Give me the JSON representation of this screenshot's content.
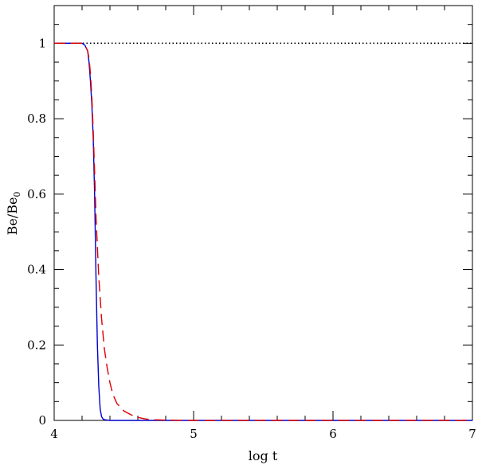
{
  "chart_data": {
    "type": "line",
    "xlabel": "log t",
    "ylabel": {
      "main": "Be/Be",
      "subscript": "0"
    },
    "xlim": [
      4,
      7
    ],
    "ylim": [
      0,
      1.1
    ],
    "x_ticks": [
      4,
      5,
      6,
      7
    ],
    "x_tick_labels": [
      "4",
      "5",
      "6",
      "7"
    ],
    "y_ticks": [
      0,
      0.2,
      0.4,
      0.6,
      0.8,
      1
    ],
    "y_tick_labels": [
      "0",
      "0.2",
      "0.4",
      "0.6",
      "0.8",
      "1"
    ],
    "grid": false,
    "series": [
      {
        "style": "dotted",
        "color": "#000000",
        "x": [
          4,
          7
        ],
        "y": [
          1,
          1
        ]
      },
      {
        "style": "solid",
        "color": "#0000cc",
        "x": [
          4.0,
          4.2,
          4.22,
          4.24,
          4.25,
          4.26,
          4.27,
          4.28,
          4.29,
          4.3,
          4.31,
          4.32,
          4.33,
          4.34,
          4.35,
          4.36,
          4.38,
          4.4,
          4.5,
          5.0,
          6.0,
          7.0
        ],
        "y": [
          1.0,
          1.0,
          0.995,
          0.98,
          0.95,
          0.9,
          0.84,
          0.75,
          0.6,
          0.38,
          0.2,
          0.09,
          0.03,
          0.01,
          0.004,
          0.002,
          0.001,
          0.0,
          0.0,
          0.0,
          0.0,
          0.0
        ]
      },
      {
        "style": "dashed",
        "color": "#dd0000",
        "x": [
          4.0,
          4.2,
          4.22,
          4.24,
          4.25,
          4.26,
          4.27,
          4.28,
          4.29,
          4.3,
          4.32,
          4.34,
          4.36,
          4.38,
          4.4,
          4.42,
          4.45,
          4.5,
          4.55,
          4.6,
          4.65,
          4.7,
          4.8,
          5.0,
          6.0,
          7.0
        ],
        "y": [
          1.0,
          1.0,
          0.995,
          0.98,
          0.96,
          0.92,
          0.86,
          0.77,
          0.66,
          0.54,
          0.38,
          0.27,
          0.19,
          0.14,
          0.1,
          0.07,
          0.045,
          0.025,
          0.015,
          0.008,
          0.004,
          0.002,
          0.001,
          0.0,
          0.0,
          0.0
        ]
      }
    ]
  }
}
